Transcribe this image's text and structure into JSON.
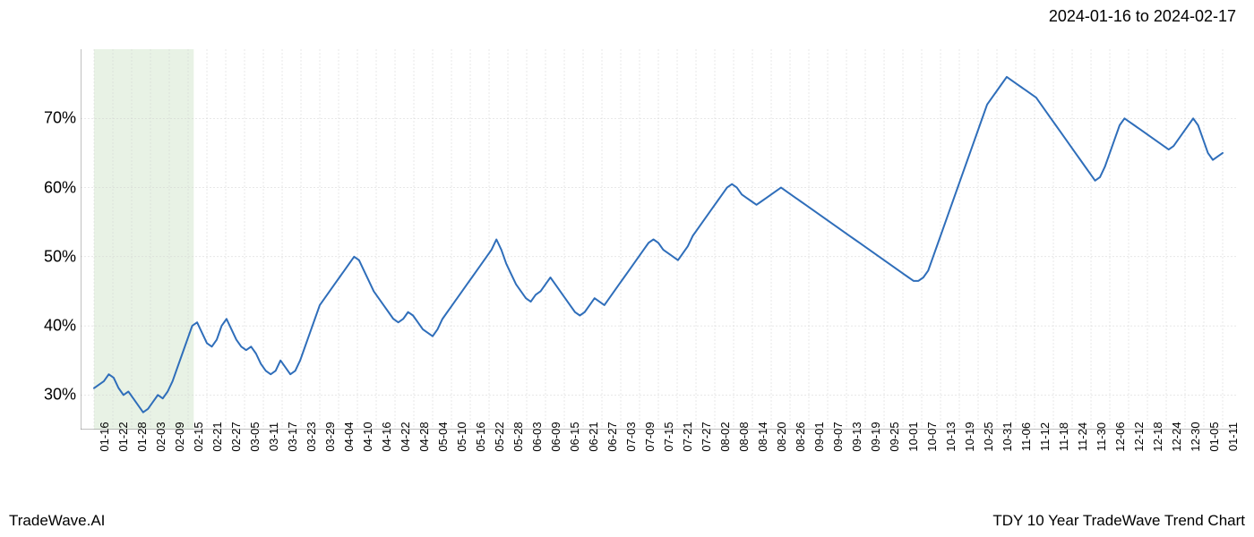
{
  "header": {
    "date_range": "2024-01-16 to 2024-02-17"
  },
  "footer": {
    "left": "TradeWave.AI",
    "right": "TDY 10 Year TradeWave Trend Chart"
  },
  "chart": {
    "type": "line",
    "background_color": "#ffffff",
    "grid_color": "#d0d0d0",
    "axis_color": "#808080",
    "line_color": "#2f6eba",
    "line_width": 2,
    "highlight_fill": "#d9ead3",
    "highlight_opacity": 0.6,
    "highlight_range": [
      "01-16",
      "02-17"
    ],
    "ylim": [
      25,
      80
    ],
    "ytick_values": [
      30,
      40,
      50,
      60,
      70
    ],
    "ytick_labels": [
      "30%",
      "40%",
      "50%",
      "60%",
      "70%"
    ],
    "xtick_labels": [
      "01-16",
      "01-22",
      "01-28",
      "02-03",
      "02-09",
      "02-15",
      "02-21",
      "02-27",
      "03-05",
      "03-11",
      "03-17",
      "03-23",
      "03-29",
      "04-04",
      "04-10",
      "04-16",
      "04-22",
      "04-28",
      "05-04",
      "05-10",
      "05-16",
      "05-22",
      "05-28",
      "06-03",
      "06-09",
      "06-15",
      "06-21",
      "06-27",
      "07-03",
      "07-09",
      "07-15",
      "07-21",
      "07-27",
      "08-02",
      "08-08",
      "08-14",
      "08-20",
      "08-26",
      "09-01",
      "09-07",
      "09-13",
      "09-19",
      "09-25",
      "10-01",
      "10-07",
      "10-13",
      "10-19",
      "10-25",
      "10-31",
      "11-06",
      "11-12",
      "11-18",
      "11-24",
      "11-30",
      "12-06",
      "12-12",
      "12-18",
      "12-24",
      "12-30",
      "01-05",
      "01-11"
    ],
    "series": {
      "values": [
        31,
        31.5,
        32,
        33,
        32.5,
        31,
        30,
        30.5,
        29.5,
        28.5,
        27.5,
        28,
        29,
        30,
        29.5,
        30.5,
        32,
        34,
        36,
        38,
        40,
        40.5,
        39,
        37.5,
        37,
        38,
        40,
        41,
        39.5,
        38,
        37,
        36.5,
        37,
        36,
        34.5,
        33.5,
        33,
        33.5,
        35,
        34,
        33,
        33.5,
        35,
        37,
        39,
        41,
        43,
        44,
        45,
        46,
        47,
        48,
        49,
        50,
        49.5,
        48,
        46.5,
        45,
        44,
        43,
        42,
        41,
        40.5,
        41,
        42,
        41.5,
        40.5,
        39.5,
        39,
        38.5,
        39.5,
        41,
        42,
        43,
        44,
        45,
        46,
        47,
        48,
        49,
        50,
        51,
        52.5,
        51,
        49,
        47.5,
        46,
        45,
        44,
        43.5,
        44.5,
        45,
        46,
        47,
        46,
        45,
        44,
        43,
        42,
        41.5,
        42,
        43,
        44,
        43.5,
        43,
        44,
        45,
        46,
        47,
        48,
        49,
        50,
        51,
        52,
        52.5,
        52,
        51,
        50.5,
        50,
        49.5,
        50.5,
        51.5,
        53,
        54,
        55,
        56,
        57,
        58,
        59,
        60,
        60.5,
        60,
        59,
        58.5,
        58,
        57.5,
        58,
        58.5,
        59,
        59.5,
        60,
        59.5,
        59,
        58.5,
        58,
        57.5,
        57,
        56.5,
        56,
        55.5,
        55,
        54.5,
        54,
        53.5,
        53,
        52.5,
        52,
        51.5,
        51,
        50.5,
        50,
        49.5,
        49,
        48.5,
        48,
        47.5,
        47,
        46.5,
        46.5,
        47,
        48,
        50,
        52,
        54,
        56,
        58,
        60,
        62,
        64,
        66,
        68,
        70,
        72,
        73,
        74,
        75,
        76,
        75.5,
        75,
        74.5,
        74,
        73.5,
        73,
        72,
        71,
        70,
        69,
        68,
        67,
        66,
        65,
        64,
        63,
        62,
        61,
        61.5,
        63,
        65,
        67,
        69,
        70,
        69.5,
        69,
        68.5,
        68,
        67.5,
        67,
        66.5,
        66,
        65.5,
        66,
        67,
        68,
        69,
        70,
        69,
        67,
        65,
        64,
        64.5,
        65
      ]
    },
    "label_fontsize": 18,
    "xtick_fontsize": 13
  }
}
